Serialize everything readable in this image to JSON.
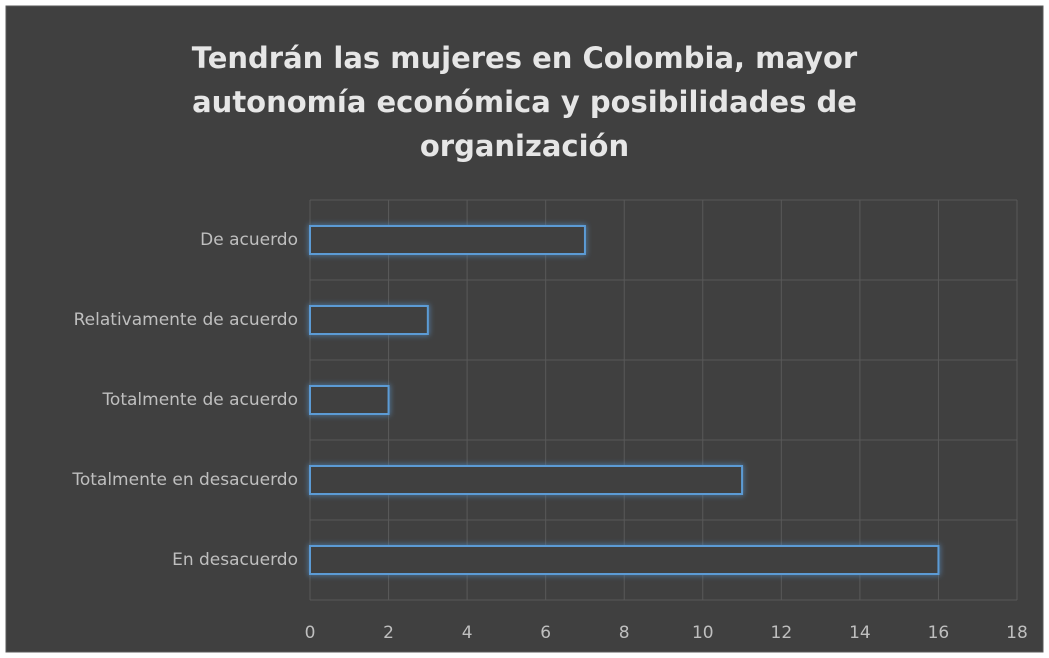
{
  "chart_data": {
    "type": "bar",
    "orientation": "horizontal",
    "title": "Tendrán las mujeres en Colombia, mayor autonomía económica y posibilidades de organización",
    "categories": [
      "De acuerdo",
      "Relativamente de acuerdo",
      "Totalmente de acuerdo",
      "Totalmente en desacuerdo",
      "En desacuerdo"
    ],
    "values": [
      7,
      3,
      2,
      11,
      16
    ],
    "color": "#5b9bd5",
    "xlim": [
      0,
      18
    ],
    "xticks": [
      0,
      2,
      4,
      6,
      8,
      10,
      12,
      14,
      16,
      18
    ],
    "grid": true
  }
}
